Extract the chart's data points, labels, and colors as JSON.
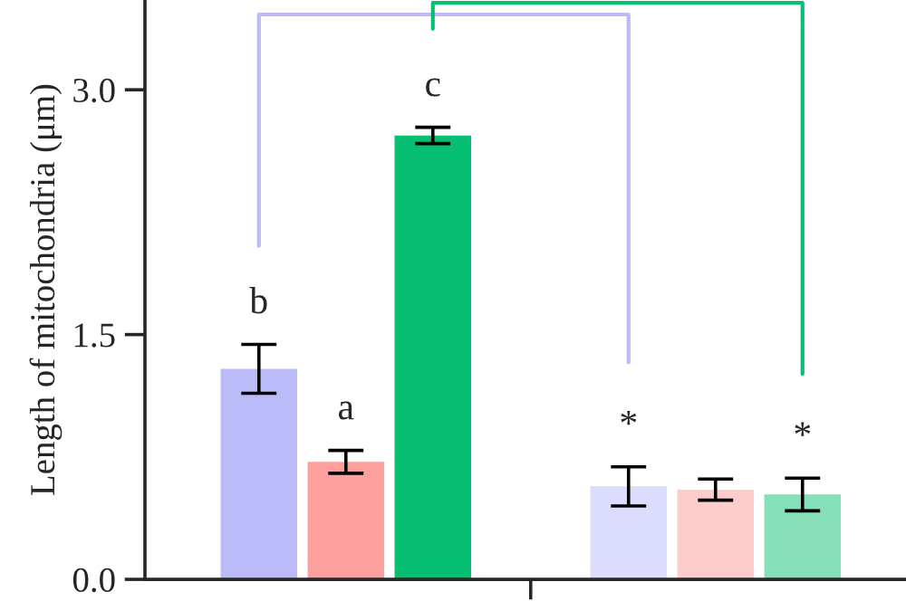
{
  "chart_data": {
    "type": "bar",
    "ylabel": "Length of mitochondria (μm)",
    "categories": [
      null,
      null
    ],
    "series": [
      {
        "colors": [
          "#bbbbf9",
          "#dcdcfc"
        ],
        "values": [
          1.29,
          0.57
        ],
        "errors": [
          0.15,
          0.12
        ],
        "value_labels": [
          "b",
          "*"
        ]
      },
      {
        "colors": [
          "#fd9f9d",
          "#fdcdcc"
        ],
        "values": [
          0.72,
          0.55
        ],
        "errors": [
          0.07,
          0.065
        ],
        "value_labels": [
          "a",
          null
        ]
      },
      {
        "colors": [
          "#07bf72",
          "#85dfb8"
        ],
        "values": [
          2.72,
          0.52
        ],
        "errors": [
          0.05,
          0.1
        ],
        "value_labels": [
          "c",
          "*"
        ]
      }
    ],
    "ylim": [
      0,
      3.55
    ],
    "yticks": [
      {
        "value": 0,
        "label": "0.0"
      },
      {
        "value": 1.5,
        "label": "1.5"
      },
      {
        "value": 3,
        "label": "3.0"
      }
    ],
    "grid": false,
    "legend": false
  }
}
